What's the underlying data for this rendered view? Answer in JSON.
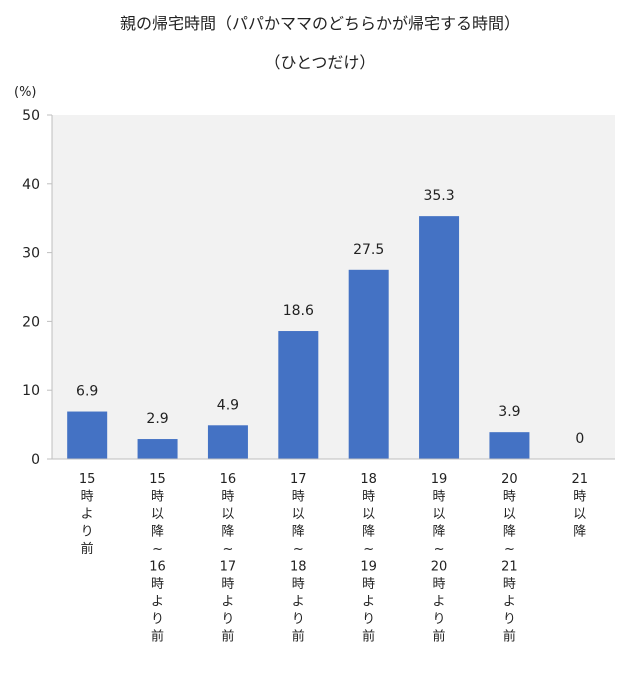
{
  "chart_data": {
    "type": "bar",
    "title": "親の帰宅時間（パパかママのどちらかが帰宅する時間）",
    "subtitle": "（ひとつだけ）",
    "ylabel": "(%)",
    "ylim": [
      0,
      50
    ],
    "yticks": [
      0,
      10,
      20,
      30,
      40,
      50
    ],
    "grid": false,
    "bar_color": "#4472c4",
    "plot_bg": "#f2f2f2",
    "categories": [
      "15時より前",
      "15時以降～16時より前",
      "16時以降～17時より前",
      "17時以降～18時より前",
      "18時以降～19時より前",
      "19時以降～20時より前",
      "20時以降～21時より前",
      "21時以降"
    ],
    "values": [
      6.9,
      2.9,
      4.9,
      18.6,
      27.5,
      35.3,
      3.9,
      0
    ]
  }
}
